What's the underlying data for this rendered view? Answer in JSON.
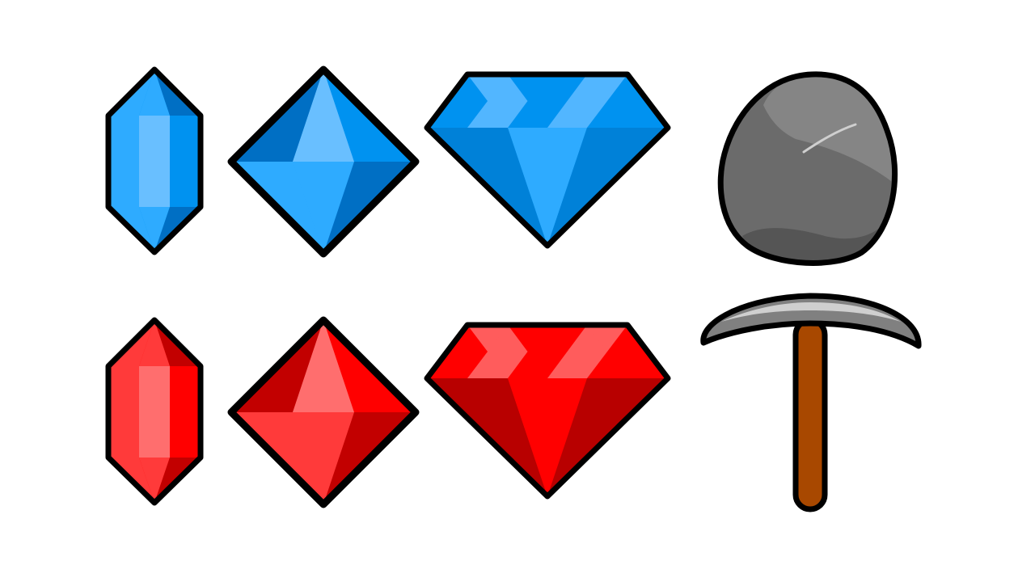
{
  "palettes": {
    "blue": {
      "light": "#69bfff",
      "mid": "#2eabff",
      "main": "#0092f0",
      "dark": "#006fc4",
      "darker": "#0081d8",
      "top": "#52b6ff"
    },
    "red": {
      "light": "#ff6e6e",
      "mid": "#ff3a3a",
      "main": "#ff0000",
      "dark": "#c20000",
      "darker": "#b80000",
      "top": "#ff5c5c"
    },
    "outline": "#000000",
    "rock": {
      "base": "#6b6b6b",
      "light": "#858585",
      "shadow": "#555555",
      "highlight": "#cfcfcf"
    },
    "pickaxe": {
      "handle": "#a84800",
      "head": "#808080",
      "head_highlight": "#cfcfcf"
    }
  },
  "sprites": [
    {
      "name": "blue-crystal-icon",
      "kind": "crystal",
      "palette": "blue"
    },
    {
      "name": "blue-octahedron-icon",
      "kind": "octahedron",
      "palette": "blue"
    },
    {
      "name": "blue-diamond-icon",
      "kind": "diamond",
      "palette": "blue"
    },
    {
      "name": "rock-icon",
      "kind": "rock"
    },
    {
      "name": "red-crystal-icon",
      "kind": "crystal",
      "palette": "red"
    },
    {
      "name": "red-octahedron-icon",
      "kind": "octahedron",
      "palette": "red"
    },
    {
      "name": "red-diamond-icon",
      "kind": "diamond",
      "palette": "red"
    },
    {
      "name": "pickaxe-icon",
      "kind": "pickaxe"
    }
  ]
}
